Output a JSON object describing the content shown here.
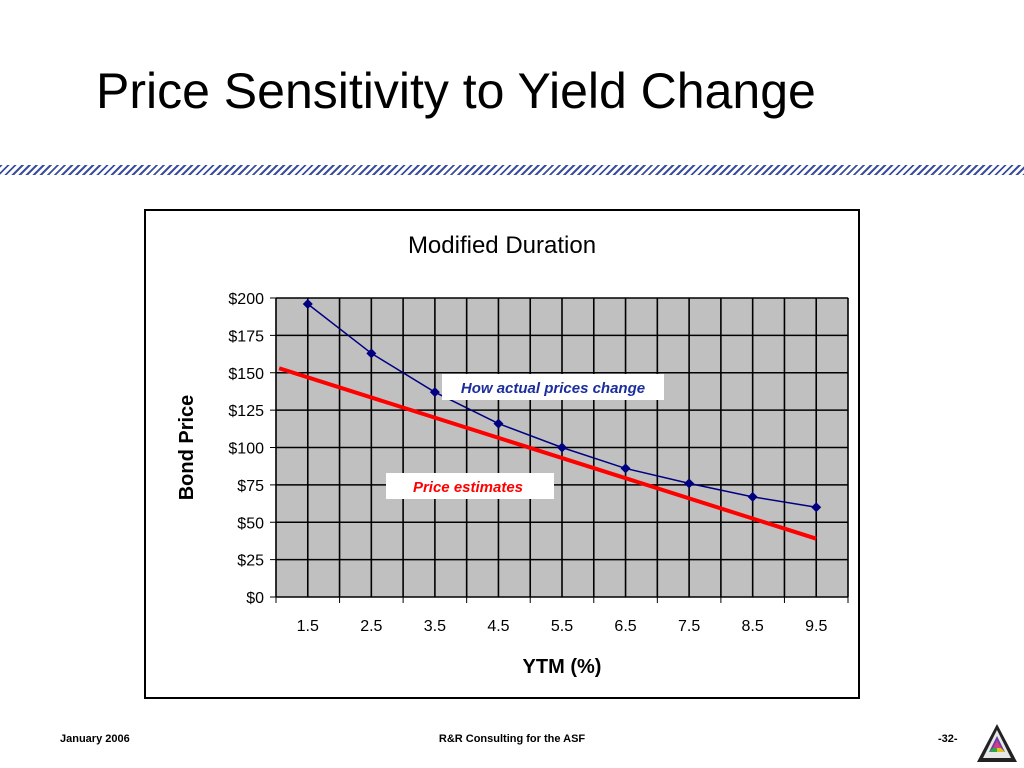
{
  "slide": {
    "title": "Price Sensitivity to Yield Change",
    "footer_left": "January 2006",
    "footer_center": "R&R Consulting for the ASF",
    "footer_right": "-32-"
  },
  "colors": {
    "plot_bg": "#c0c0c0",
    "grid": "#000000",
    "actual_series": "#000080",
    "estimate_series": "#ff0000",
    "actual_label": "#1c2d9c",
    "estimate_label": "#ff0000",
    "divider": "#3b4fa0"
  },
  "chart_data": {
    "type": "line",
    "title": "Modified Duration",
    "xlabel": "YTM (%)",
    "ylabel": "Bond Price",
    "categories": [
      "1.5",
      "2.5",
      "3.5",
      "4.5",
      "5.5",
      "6.5",
      "7.5",
      "8.5",
      "9.5"
    ],
    "ylim": [
      0,
      200
    ],
    "y_ticks": [
      "$0",
      "$25",
      "$50",
      "$75",
      "$100",
      "$125",
      "$150",
      "$175",
      "$200"
    ],
    "grid": true,
    "series": [
      {
        "name": "How actual prices change",
        "marker": "diamond",
        "values": [
          196,
          163,
          137,
          116,
          100,
          86,
          76,
          67,
          60
        ]
      },
      {
        "name": "Price estimates",
        "marker": "none",
        "x_start": 1.05,
        "x_end": 9.5,
        "values_endpoints": [
          153,
          39
        ]
      }
    ]
  }
}
